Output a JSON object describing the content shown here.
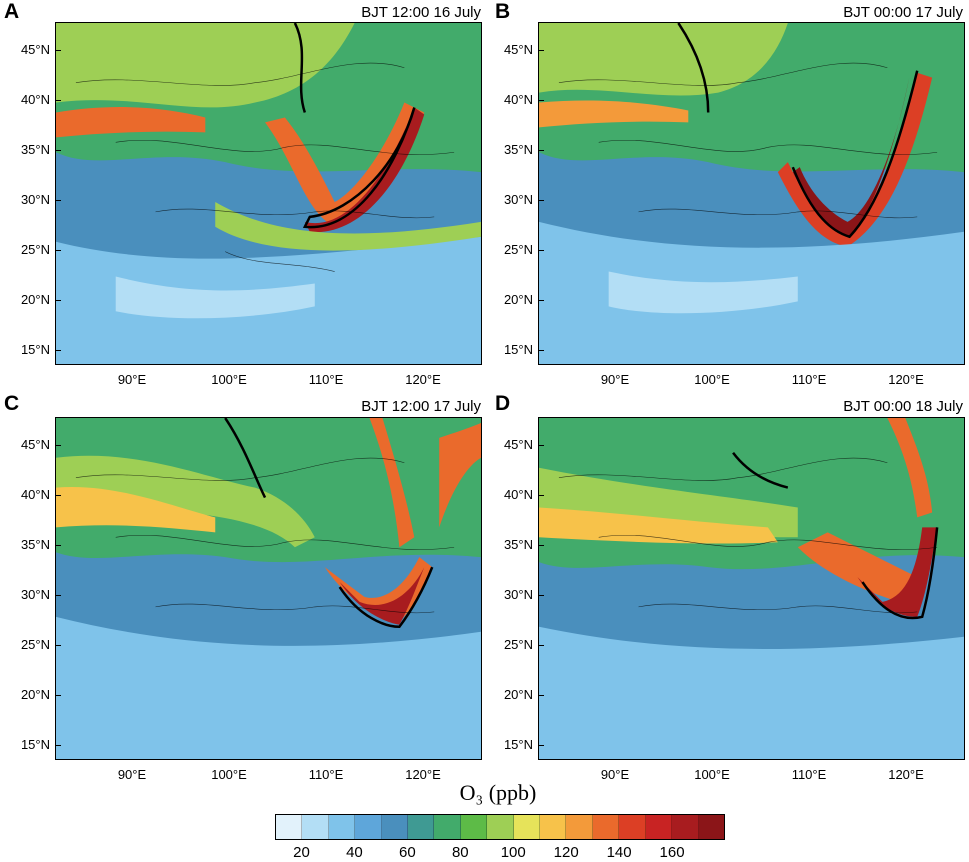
{
  "panels": [
    {
      "letter": "A",
      "time": "BJT 12:00 16 July"
    },
    {
      "letter": "B",
      "time": "BJT 00:00 17 July"
    },
    {
      "letter": "C",
      "time": "BJT 12:00 17 July"
    },
    {
      "letter": "D",
      "time": "BJT 00:00 18 July"
    }
  ],
  "lat_labels": [
    "45°N",
    "40°N",
    "35°N",
    "30°N",
    "25°N",
    "20°N",
    "15°N"
  ],
  "lon_labels": [
    "90°E",
    "100°E",
    "110°E",
    "120°E"
  ],
  "colorbar": {
    "title": "O₃ (ppb)",
    "labels": [
      "20",
      "40",
      "60",
      "80",
      "100",
      "120",
      "140",
      "160"
    ],
    "colors": [
      "#e2f2fb",
      "#b3def5",
      "#7fc3ea",
      "#5ea6da",
      "#4a8fbd",
      "#3f9a93",
      "#42ab6b",
      "#5dbb47",
      "#9ecf55",
      "#e6e35a",
      "#f7c24a",
      "#f39a3a",
      "#ea6a2c",
      "#dc3f25",
      "#c82323",
      "#a81c1f",
      "#8b1518"
    ],
    "palette_names": {
      "low": "light blue",
      "high": "dark red"
    }
  }
}
